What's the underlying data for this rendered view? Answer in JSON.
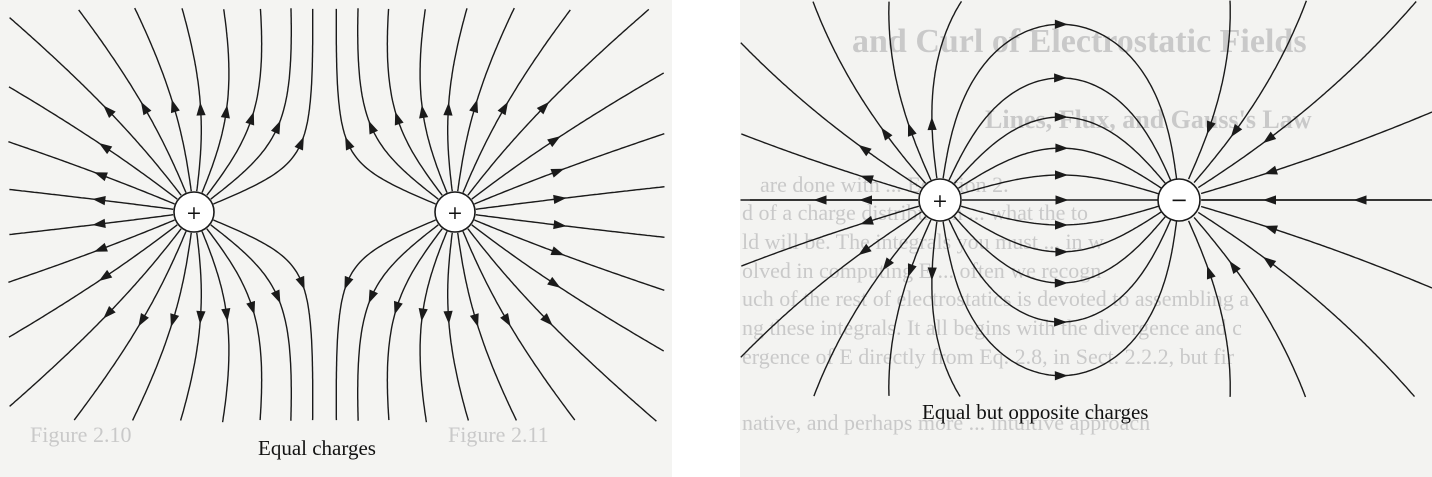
{
  "left_figure": {
    "caption": "Equal charges",
    "charges": [
      {
        "id": "left-charge",
        "sign": "+"
      },
      {
        "id": "right-charge",
        "sign": "+"
      }
    ]
  },
  "right_figure": {
    "caption": "Equal but opposite charges",
    "charges": [
      {
        "id": "positive-charge",
        "sign": "+"
      },
      {
        "id": "negative-charge",
        "sign": "−"
      }
    ]
  },
  "background_text": {
    "right_heading": "and Curl of Electrostatic Fields",
    "right_subheading": "Lines, Flux, and Gauss's Law",
    "right_body_lines": [
      "are done with ... Equation 2.",
      "d of a charge distribution ... what the to",
      "ld will be. The integrals you must ... in w",
      "olved in computing E ... often we recogn",
      "uch of the rest of electrostatics is devoted to assembling a",
      "ng these integrals. It all begins with the divergence and c",
      "ergence of E directly from Eq. 2.8, in Sect. 2.2.2, but fir",
      "native, and perhaps more ... intuitive approach"
    ],
    "left_figure_labels": [
      "Figure 2.10",
      "Figure 2.11"
    ]
  },
  "colors": {
    "line": "#1a1a1a",
    "faded_text": "#c9c9c9",
    "background": "#f4f4f2"
  }
}
